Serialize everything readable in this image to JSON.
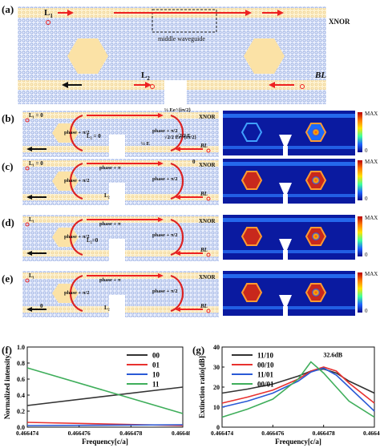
{
  "panels": {
    "a": {
      "label": "(a)",
      "L1": "L",
      "L1_sub": "1",
      "L2": "L",
      "L2_sub": "2",
      "BL": "BL",
      "xnor": "XNOR",
      "middle": "middle waveguide"
    },
    "b": {
      "label": "(b)",
      "L1_eq": "L₁ = 0",
      "L2_eq": "L₂ = 0",
      "xnor": "XNOR",
      "BL": "BL",
      "phase1": "phase + π/2",
      "phase2": "phase + π/2",
      "amp1": "½ Ee^{iπ/2}",
      "amp2": "√2/2 Ee^{iπ/2}",
      "amp3": "½ E",
      "amp4": "√2/2 E",
      "amp5": "E"
    },
    "c": {
      "label": "(c)",
      "L1_eq": "L₁ = 0",
      "xnor_val": "0",
      "xnor": "XNOR",
      "BL": "BL",
      "L2": "L₂",
      "phase_pi": "phase + π",
      "phase1": "phase + π/2",
      "phase2": "phase + π/2"
    },
    "d": {
      "label": "(d)",
      "L1": "L₁",
      "L2_eq": "L₂=0",
      "xnor": "XNOR",
      "BL": "BL",
      "phase_pi": "phase + π",
      "phase1": "phase + π/2",
      "phase2": "phase + π/2"
    },
    "e": {
      "label": "(e)",
      "L1": "L₁",
      "L2": "L₂",
      "xnor": "XNOR",
      "BL": "BL",
      "zero": "0",
      "phase_pi": "phase + π",
      "phase1": "phase + π/2",
      "phase2": "phase + π/2"
    },
    "max_label": "MAX",
    "zero_label": "0",
    "f": {
      "label": "(f)"
    },
    "g": {
      "label": "(g)"
    }
  },
  "chart_data": [
    {
      "type": "line",
      "title": "",
      "xlabel": "Frequency[c/a]",
      "ylabel": "Normalized intensity",
      "x": [
        0.466474,
        0.46648
      ],
      "xlim": [
        0.466474,
        0.46648
      ],
      "ylim": [
        0,
        1
      ],
      "xticks": [
        "0.466474",
        "0.466476",
        "0.466478",
        "0.466480"
      ],
      "yticks": [
        "0.0",
        "0.2",
        "0.4",
        "0.6",
        "0.8",
        "1.0"
      ],
      "legend_position": "top-right",
      "series": [
        {
          "name": "00",
          "color": "#333333",
          "values": [
            0.27,
            0.5
          ]
        },
        {
          "name": "01",
          "color": "#e8312f",
          "values": [
            0.06,
            0.02
          ]
        },
        {
          "name": "10",
          "color": "#2a5ad6",
          "values": [
            0.02,
            0.03
          ]
        },
        {
          "name": "11",
          "color": "#3fae5b",
          "values": [
            0.74,
            0.17
          ]
        }
      ]
    },
    {
      "type": "line",
      "title": "",
      "xlabel": "Frequency[c/a]",
      "ylabel": "Extinction ratio[dB]",
      "xlim": [
        0.466474,
        0.46648
      ],
      "ylim": [
        0,
        40
      ],
      "xticks": [
        "0.466474",
        "0.466476",
        "0.466478",
        "0.466480"
      ],
      "yticks": [
        "0",
        "10",
        "20",
        "30",
        "40"
      ],
      "annotation": "32.6dB",
      "legend_position": "top-left",
      "series": [
        {
          "name": "11/10",
          "color": "#333333",
          "x": [
            0.466474,
            0.466475,
            0.466476,
            0.466477,
            0.4664775,
            0.466478,
            0.4664785,
            0.466479,
            0.46648
          ],
          "values": [
            17,
            19,
            21.5,
            25.5,
            28,
            29,
            27,
            23,
            17
          ]
        },
        {
          "name": "00/10",
          "color": "#e8312f",
          "x": [
            0.466474,
            0.466475,
            0.466476,
            0.466477,
            0.4664775,
            0.466478,
            0.4664785,
            0.466479,
            0.46648
          ],
          "values": [
            12,
            15,
            18.5,
            24,
            28,
            30,
            28,
            22,
            12
          ]
        },
        {
          "name": "11/01",
          "color": "#2a5ad6",
          "x": [
            0.466474,
            0.466475,
            0.466476,
            0.466477,
            0.4664775,
            0.466478,
            0.4664785,
            0.466479,
            0.46648
          ],
          "values": [
            10,
            13,
            17,
            23,
            27.5,
            29.5,
            26,
            20,
            8
          ]
        },
        {
          "name": "00/01",
          "color": "#3fae5b",
          "x": [
            0.466474,
            0.466475,
            0.466476,
            0.466477,
            0.4664775,
            0.466478,
            0.4664785,
            0.466479,
            0.46648
          ],
          "values": [
            5,
            9,
            14,
            24,
            32.6,
            27,
            20,
            13,
            5
          ]
        }
      ]
    }
  ]
}
